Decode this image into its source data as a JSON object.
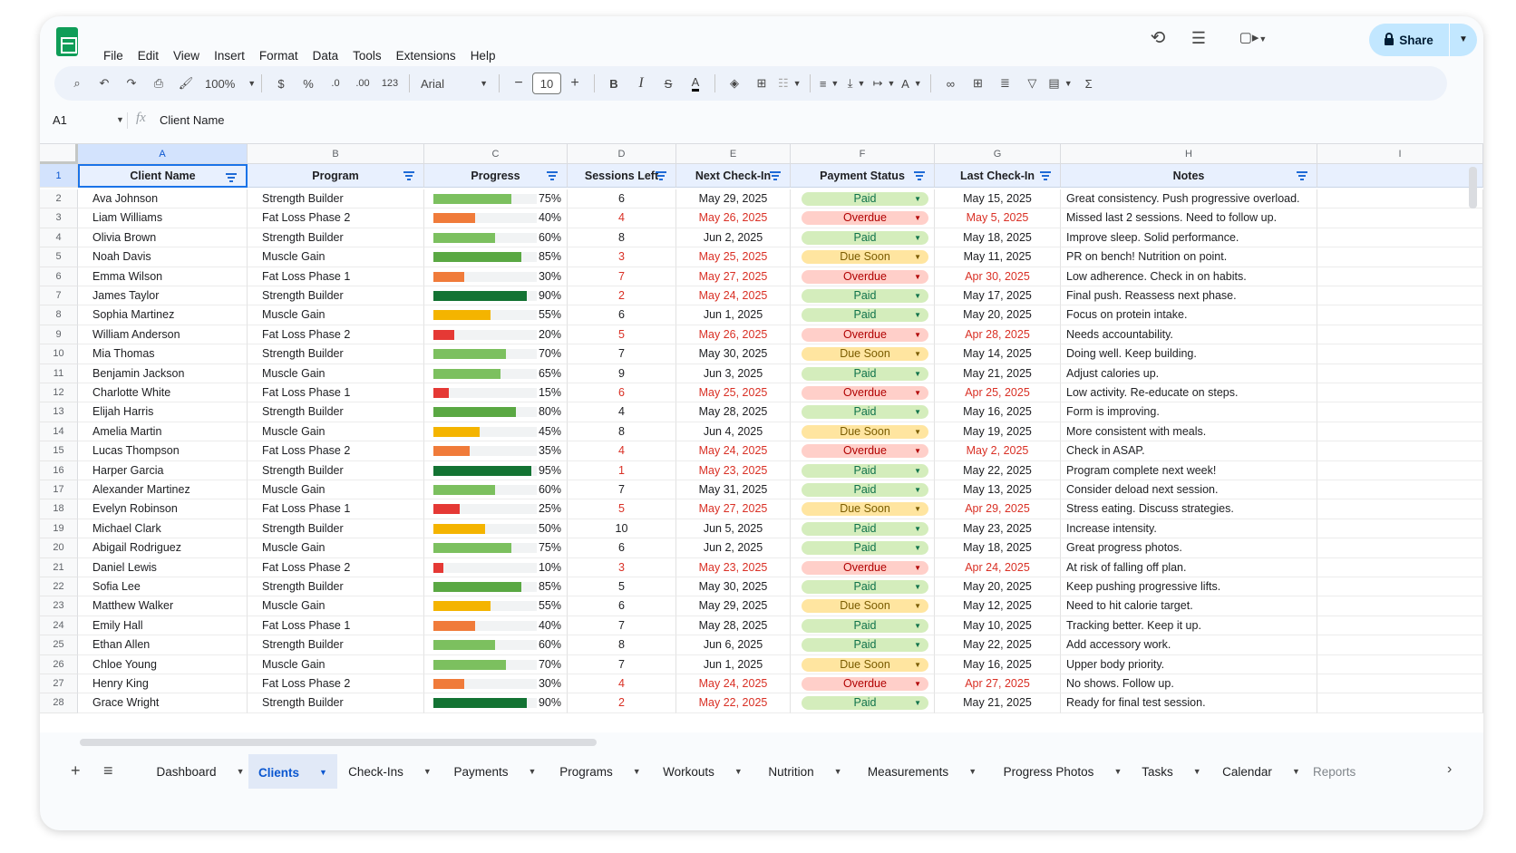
{
  "menu": [
    "File",
    "Edit",
    "View",
    "Insert",
    "Format",
    "Data",
    "Tools",
    "Extensions",
    "Help"
  ],
  "share_label": "Share",
  "toolbar": {
    "zoom": "100%",
    "currency": "$",
    "percent": "%",
    "dec_decrease": ".0",
    "dec_increase": ".00",
    "format_123": "123",
    "font": "Arial",
    "font_size": "10"
  },
  "name_box": "A1",
  "formula_value": "Client Name",
  "columns": [
    "A",
    "B",
    "C",
    "D",
    "E",
    "F",
    "G",
    "H",
    "I"
  ],
  "headers": [
    "Client Name",
    "Program",
    "Progress",
    "Sessions Left",
    "Next Check-In",
    "Payment Status",
    "Last Check-In",
    "Notes"
  ],
  "colors": {
    "paid": "#d4edbc",
    "overdue": "#ffcfc9",
    "due_soon": "#ffe5a0",
    "accent": "#0b57d0"
  },
  "rows": [
    {
      "num": "2",
      "name": "Ava Johnson",
      "program": "Strength Builder",
      "progress": 75,
      "pct": "75%",
      "sessions": "6",
      "next": "May 29, 2025",
      "next_red": false,
      "status": "Paid",
      "last": "May 15, 2025",
      "last_red": false,
      "notes": "Great consistency. Push progressive overload."
    },
    {
      "num": "3",
      "name": "Liam Williams",
      "program": "Fat Loss Phase 2",
      "progress": 40,
      "pct": "40%",
      "sessions": "4",
      "next": "May 26, 2025",
      "next_red": true,
      "status": "Overdue",
      "last": "May 5, 2025",
      "last_red": true,
      "notes": "Missed last 2 sessions. Need to follow up."
    },
    {
      "num": "4",
      "name": "Olivia Brown",
      "program": "Strength Builder",
      "progress": 60,
      "pct": "60%",
      "sessions": "8",
      "next": "Jun 2, 2025",
      "next_red": false,
      "status": "Paid",
      "last": "May 18, 2025",
      "last_red": false,
      "notes": "Improve sleep. Solid performance."
    },
    {
      "num": "5",
      "name": "Noah Davis",
      "program": "Muscle Gain",
      "progress": 85,
      "pct": "85%",
      "sessions": "3",
      "next": "May 25, 2025",
      "next_red": true,
      "status": "Due Soon",
      "last": "May 11, 2025",
      "last_red": false,
      "notes": "PR on bench! Nutrition on point."
    },
    {
      "num": "6",
      "name": "Emma Wilson",
      "program": "Fat Loss Phase 1",
      "progress": 30,
      "pct": "30%",
      "sessions": "7",
      "next": "May 27, 2025",
      "next_red": true,
      "status": "Overdue",
      "last": "Apr 30, 2025",
      "last_red": true,
      "notes": "Low adherence. Check in on habits."
    },
    {
      "num": "7",
      "name": "James Taylor",
      "program": "Strength Builder",
      "progress": 90,
      "pct": "90%",
      "sessions": "2",
      "next": "May 24, 2025",
      "next_red": true,
      "status": "Paid",
      "last": "May 17, 2025",
      "last_red": false,
      "notes": "Final push. Reassess next phase."
    },
    {
      "num": "8",
      "name": "Sophia Martinez",
      "program": "Muscle Gain",
      "progress": 55,
      "pct": "55%",
      "sessions": "6",
      "next": "Jun 1, 2025",
      "next_red": false,
      "status": "Paid",
      "last": "May 20, 2025",
      "last_red": false,
      "notes": "Focus on protein intake."
    },
    {
      "num": "9",
      "name": "William Anderson",
      "program": "Fat Loss Phase 2",
      "progress": 20,
      "pct": "20%",
      "sessions": "5",
      "next": "May 26, 2025",
      "next_red": true,
      "status": "Overdue",
      "last": "Apr 28, 2025",
      "last_red": true,
      "notes": "Needs accountability."
    },
    {
      "num": "10",
      "name": "Mia Thomas",
      "program": "Strength Builder",
      "progress": 70,
      "pct": "70%",
      "sessions": "7",
      "next": "May 30, 2025",
      "next_red": false,
      "status": "Due Soon",
      "last": "May 14, 2025",
      "last_red": false,
      "notes": "Doing well. Keep building."
    },
    {
      "num": "11",
      "name": "Benjamin Jackson",
      "program": "Muscle Gain",
      "progress": 65,
      "pct": "65%",
      "sessions": "9",
      "next": "Jun 3, 2025",
      "next_red": false,
      "status": "Paid",
      "last": "May 21, 2025",
      "last_red": false,
      "notes": "Adjust calories up."
    },
    {
      "num": "12",
      "name": "Charlotte White",
      "program": "Fat Loss Phase 1",
      "progress": 15,
      "pct": "15%",
      "sessions": "6",
      "next": "May 25, 2025",
      "next_red": true,
      "status": "Overdue",
      "last": "Apr 25, 2025",
      "last_red": true,
      "notes": "Low activity. Re-educate on steps."
    },
    {
      "num": "13",
      "name": "Elijah Harris",
      "program": "Strength Builder",
      "progress": 80,
      "pct": "80%",
      "sessions": "4",
      "next": "May 28, 2025",
      "next_red": false,
      "status": "Paid",
      "last": "May 16, 2025",
      "last_red": false,
      "notes": "Form is improving."
    },
    {
      "num": "14",
      "name": "Amelia Martin",
      "program": "Muscle Gain",
      "progress": 45,
      "pct": "45%",
      "sessions": "8",
      "next": "Jun 4, 2025",
      "next_red": false,
      "status": "Due Soon",
      "last": "May 19, 2025",
      "last_red": false,
      "notes": "More consistent with meals."
    },
    {
      "num": "15",
      "name": "Lucas Thompson",
      "program": "Fat Loss Phase 2",
      "progress": 35,
      "pct": "35%",
      "sessions": "4",
      "next": "May 24, 2025",
      "next_red": true,
      "status": "Overdue",
      "last": "May 2, 2025",
      "last_red": true,
      "notes": "Check in ASAP."
    },
    {
      "num": "16",
      "name": "Harper Garcia",
      "program": "Strength Builder",
      "progress": 95,
      "pct": "95%",
      "sessions": "1",
      "next": "May 23, 2025",
      "next_red": true,
      "status": "Paid",
      "last": "May 22, 2025",
      "last_red": false,
      "notes": "Program complete next week!"
    },
    {
      "num": "17",
      "name": "Alexander Martinez",
      "program": "Muscle Gain",
      "progress": 60,
      "pct": "60%",
      "sessions": "7",
      "next": "May 31, 2025",
      "next_red": false,
      "status": "Paid",
      "last": "May 13, 2025",
      "last_red": false,
      "notes": "Consider deload next session."
    },
    {
      "num": "18",
      "name": "Evelyn Robinson",
      "program": "Fat Loss Phase 1",
      "progress": 25,
      "pct": "25%",
      "sessions": "5",
      "next": "May 27, 2025",
      "next_red": true,
      "status": "Due Soon",
      "last": "Apr 29, 2025",
      "last_red": true,
      "notes": "Stress eating. Discuss strategies."
    },
    {
      "num": "19",
      "name": "Michael Clark",
      "program": "Strength Builder",
      "progress": 50,
      "pct": "50%",
      "sessions": "10",
      "next": "Jun 5, 2025",
      "next_red": false,
      "status": "Paid",
      "last": "May 23, 2025",
      "last_red": false,
      "notes": "Increase intensity."
    },
    {
      "num": "20",
      "name": "Abigail Rodriguez",
      "program": "Muscle Gain",
      "progress": 75,
      "pct": "75%",
      "sessions": "6",
      "next": "Jun 2, 2025",
      "next_red": false,
      "status": "Paid",
      "last": "May 18, 2025",
      "last_red": false,
      "notes": "Great progress photos."
    },
    {
      "num": "21",
      "name": "Daniel Lewis",
      "program": "Fat Loss Phase 2",
      "progress": 10,
      "pct": "10%",
      "sessions": "3",
      "next": "May 23, 2025",
      "next_red": true,
      "status": "Overdue",
      "last": "Apr 24, 2025",
      "last_red": true,
      "notes": "At risk of falling off plan."
    },
    {
      "num": "22",
      "name": "Sofia Lee",
      "program": "Strength Builder",
      "progress": 85,
      "pct": "85%",
      "sessions": "5",
      "next": "May 30, 2025",
      "next_red": false,
      "status": "Paid",
      "last": "May 20, 2025",
      "last_red": false,
      "notes": "Keep pushing progressive lifts."
    },
    {
      "num": "23",
      "name": "Matthew Walker",
      "program": "Muscle Gain",
      "progress": 55,
      "pct": "55%",
      "sessions": "6",
      "next": "May 29, 2025",
      "next_red": false,
      "status": "Due Soon",
      "last": "May 12, 2025",
      "last_red": false,
      "notes": "Need to hit calorie target."
    },
    {
      "num": "24",
      "name": "Emily Hall",
      "program": "Fat Loss Phase 1",
      "progress": 40,
      "pct": "40%",
      "sessions": "7",
      "next": "May 28, 2025",
      "next_red": false,
      "status": "Paid",
      "last": "May 10, 2025",
      "last_red": false,
      "notes": "Tracking better. Keep it up."
    },
    {
      "num": "25",
      "name": "Ethan Allen",
      "program": "Strength Builder",
      "progress": 60,
      "pct": "60%",
      "sessions": "8",
      "next": "Jun 6, 2025",
      "next_red": false,
      "status": "Paid",
      "last": "May 22, 2025",
      "last_red": false,
      "notes": "Add accessory work."
    },
    {
      "num": "26",
      "name": "Chloe Young",
      "program": "Muscle Gain",
      "progress": 70,
      "pct": "70%",
      "sessions": "7",
      "next": "Jun 1, 2025",
      "next_red": false,
      "status": "Due Soon",
      "last": "May 16, 2025",
      "last_red": false,
      "notes": "Upper body priority."
    },
    {
      "num": "27",
      "name": "Henry King",
      "program": "Fat Loss Phase 2",
      "progress": 30,
      "pct": "30%",
      "sessions": "4",
      "next": "May 24, 2025",
      "next_red": true,
      "status": "Overdue",
      "last": "Apr 27, 2025",
      "last_red": true,
      "notes": "No shows. Follow up."
    },
    {
      "num": "28",
      "name": "Grace Wright",
      "program": "Strength Builder",
      "progress": 90,
      "pct": "90%",
      "sessions": "2",
      "next": "May 22, 2025",
      "next_red": true,
      "status": "Paid",
      "last": "May 21, 2025",
      "last_red": false,
      "notes": "Ready for final test session."
    }
  ],
  "sheet_tabs": [
    "Dashboard",
    "Clients",
    "Check-Ins",
    "Payments",
    "Programs",
    "Workouts",
    "Nutrition",
    "Measurements",
    "Progress Photos",
    "Tasks",
    "Calendar",
    "Reports"
  ],
  "active_tab": "Clients"
}
